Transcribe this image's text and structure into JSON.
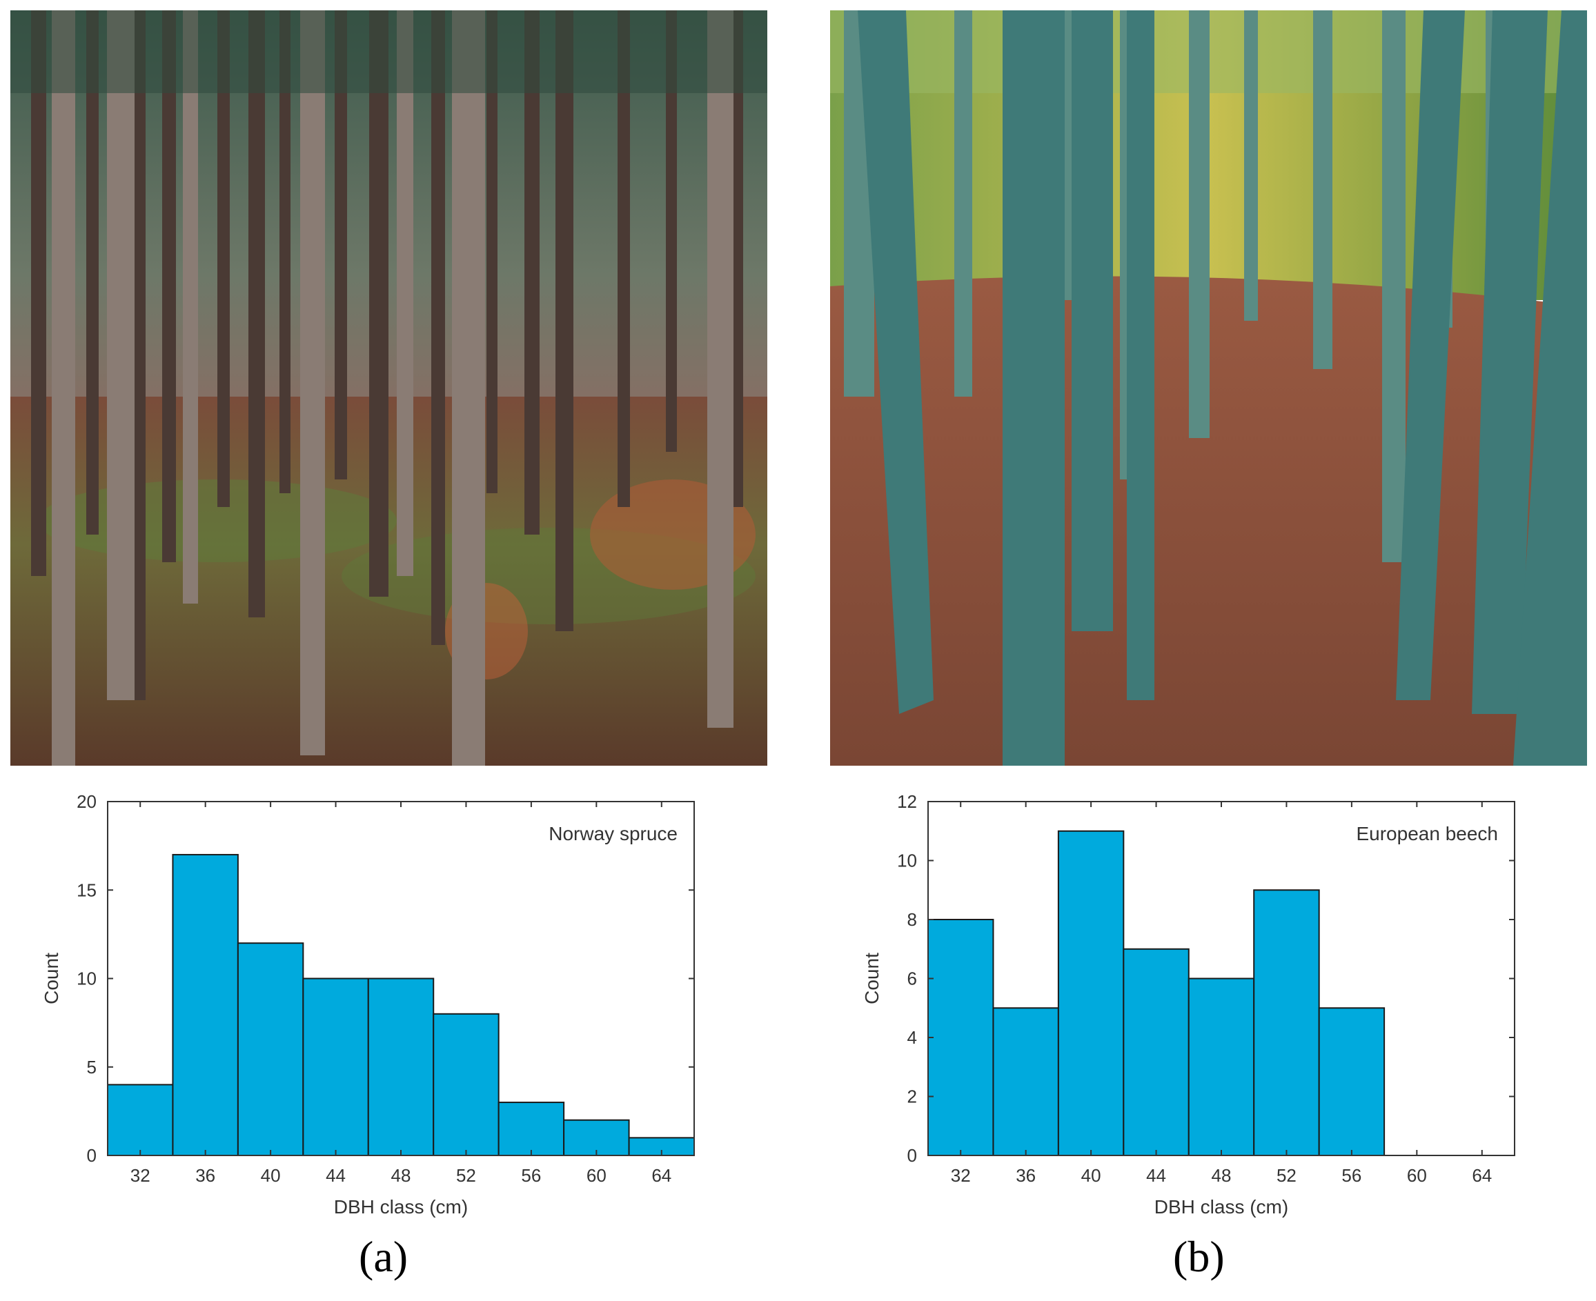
{
  "panels": [
    {
      "label": "(a)",
      "photo": "spruce-forest-photo"
    },
    {
      "label": "(b)",
      "photo": "beech-forest-photo"
    }
  ],
  "chart_data": [
    {
      "type": "bar",
      "title": "",
      "annotation": "Norway spruce",
      "xlabel": "DBH class (cm)",
      "ylabel": "Count",
      "xlim": [
        30,
        66
      ],
      "ylim": [
        0,
        20
      ],
      "xticks": [
        32,
        36,
        40,
        44,
        48,
        52,
        56,
        60,
        64
      ],
      "yticks": [
        0,
        5,
        10,
        15,
        20
      ],
      "bin_edges": [
        30,
        34,
        38,
        42,
        46,
        50,
        54,
        58,
        62,
        66
      ],
      "values": [
        4,
        17,
        12,
        10,
        10,
        8,
        3,
        2,
        1
      ],
      "bar_color": "#00aadd",
      "grid": false
    },
    {
      "type": "bar",
      "title": "",
      "annotation": "European beech",
      "xlabel": "DBH class (cm)",
      "ylabel": "Count",
      "xlim": [
        30,
        66
      ],
      "ylim": [
        0,
        12
      ],
      "xticks": [
        32,
        36,
        40,
        44,
        48,
        52,
        56,
        60,
        64
      ],
      "yticks": [
        0,
        2,
        4,
        6,
        8,
        10,
        12
      ],
      "bin_edges": [
        30,
        34,
        38,
        42,
        46,
        50,
        54,
        58,
        62,
        66
      ],
      "values": [
        8,
        5,
        11,
        7,
        6,
        9,
        5,
        0,
        0
      ],
      "bar_color": "#00aadd",
      "grid": false
    }
  ]
}
